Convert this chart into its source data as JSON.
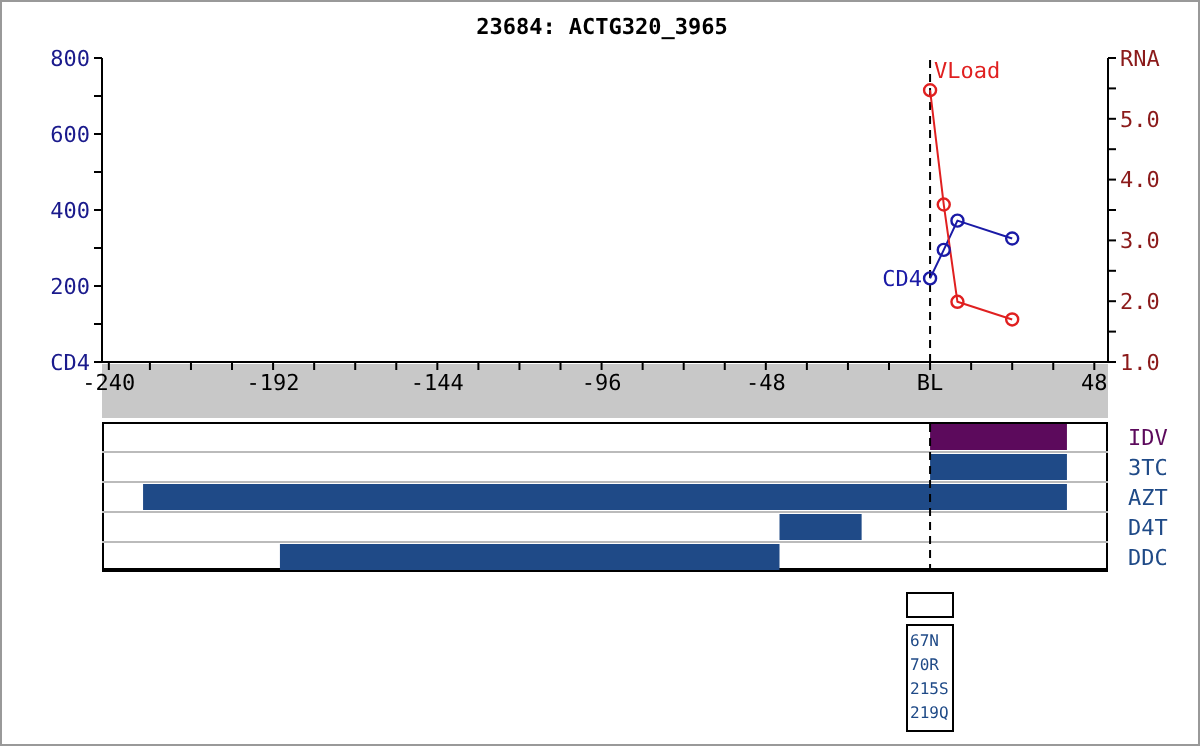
{
  "chart_data": [
    {
      "type": "line",
      "title": "23684: ACTG320_3965",
      "marker": "circle",
      "grid": false,
      "xlim": [
        -242,
        52
      ],
      "xticks": [
        -240,
        {
          "value": -228,
          "label": null
        },
        {
          "value": -216,
          "label": null
        },
        {
          "value": -204,
          "label": null
        },
        -192,
        {
          "value": -180,
          "label": null
        },
        {
          "value": -168,
          "label": null
        },
        {
          "value": -156,
          "label": null
        },
        -144,
        {
          "value": -132,
          "label": null
        },
        {
          "value": -120,
          "label": null
        },
        {
          "value": -108,
          "label": null
        },
        -96,
        {
          "value": -84,
          "label": null
        },
        {
          "value": -72,
          "label": null
        },
        {
          "value": -60,
          "label": null
        },
        -48,
        {
          "value": -36,
          "label": null
        },
        {
          "value": -24,
          "label": null
        },
        {
          "value": -12,
          "label": null
        },
        {
          "value": 0,
          "label": "BL"
        },
        {
          "value": 12,
          "label": null
        },
        {
          "value": 24,
          "label": null
        },
        {
          "value": 36,
          "label": null
        },
        48
      ],
      "ylim": [
        0,
        800
      ],
      "yticks": [
        {
          "value": 0,
          "label": "CD4"
        },
        {
          "value": 100,
          "label": null
        },
        200,
        {
          "value": 300,
          "label": null
        },
        400,
        {
          "value": 500,
          "label": null
        },
        600,
        {
          "value": 700,
          "label": null
        },
        800
      ],
      "y2lim": [
        1,
        6
      ],
      "y2ticks": [
        {
          "value": 1,
          "label": "1.0"
        },
        {
          "value": 1.5,
          "label": null
        },
        {
          "value": 2,
          "label": "2.0"
        },
        {
          "value": 2.5,
          "label": null
        },
        {
          "value": 3,
          "label": "3.0"
        },
        {
          "value": 3.5,
          "label": null
        },
        {
          "value": 4,
          "label": "4.0"
        },
        {
          "value": 4.5,
          "label": null
        },
        {
          "value": 5,
          "label": "5.0"
        },
        {
          "value": 5.5,
          "label": null
        },
        {
          "value": 6,
          "label": "RNA"
        }
      ],
      "ref_lines": [
        {
          "axis": "x",
          "value": 0,
          "label": null,
          "color": "#000000",
          "line_style": "dashed"
        }
      ],
      "series": [
        {
          "name": "CD4",
          "color": "#1a1aa6",
          "x": [
            0,
            4,
            8,
            24
          ],
          "values": [
            220,
            295,
            372,
            325
          ]
        },
        {
          "name": "VLoad",
          "color": "#e02020",
          "axis": "y2",
          "x": [
            0,
            4,
            8,
            24
          ],
          "values": [
            5.47,
            3.59,
            1.99,
            1.7
          ]
        }
      ]
    },
    {
      "type": "bar",
      "orientation": "horizontal",
      "tick_labels": "y",
      "grid": "y",
      "categories": [
        "IDV",
        "3TC",
        "AZT",
        "D4T",
        "DDC"
      ],
      "xlim": [
        -242,
        52
      ],
      "base": [
        0,
        0,
        -230,
        -44,
        -190
      ],
      "values": [
        40,
        40,
        270,
        24,
        146
      ],
      "colors": [
        "#5c0a5c",
        "#1f4a87",
        "#1f4a87",
        "#1f4a87",
        "#1f4a87"
      ],
      "ref_lines": [
        {
          "axis": "x",
          "value": 0,
          "label": null,
          "color": "#000000",
          "line_style": "dashed"
        }
      ],
      "annotations": [
        "67N",
        "70R",
        "215S",
        "219Q"
      ]
    }
  ]
}
